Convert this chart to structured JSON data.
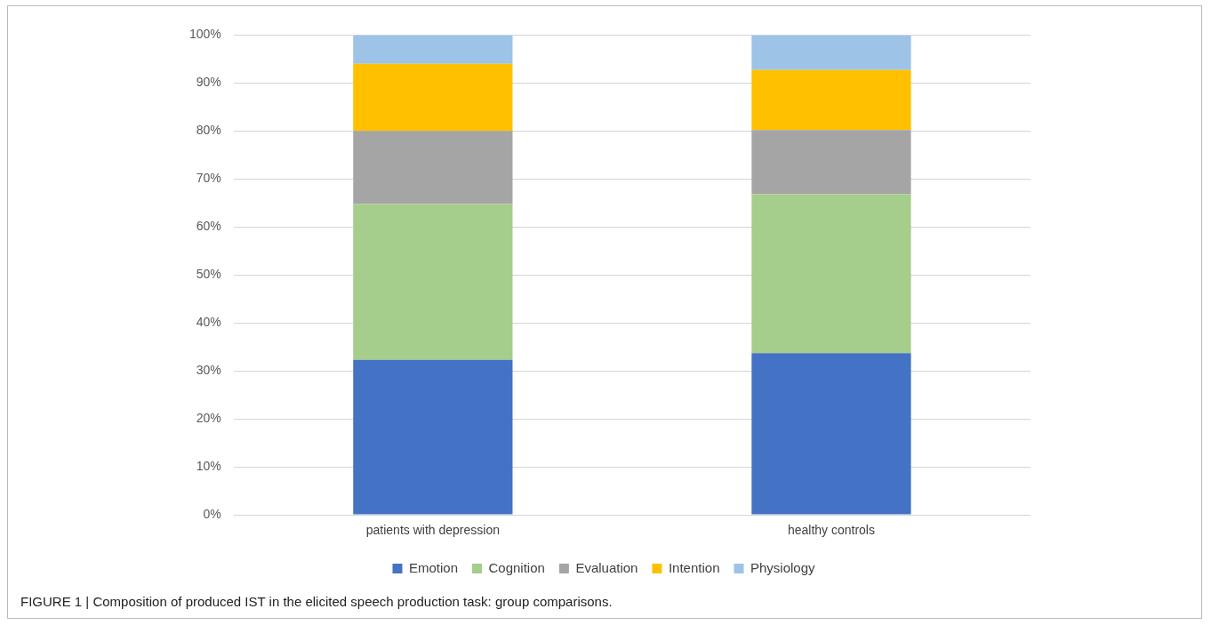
{
  "chart_data": {
    "type": "bar",
    "stacked": true,
    "categories": [
      "patients with depression",
      "healthy controls"
    ],
    "series": [
      {
        "name": "Emotion",
        "color": "#4472c4",
        "values": [
          32.3,
          33.7
        ]
      },
      {
        "name": "Cognition",
        "color": "#a5cd8c",
        "values": [
          32.5,
          33.1
        ]
      },
      {
        "name": "Evaluation",
        "color": "#a5a5a5",
        "values": [
          15.2,
          13.4
        ]
      },
      {
        "name": "Intention",
        "color": "#ffc000",
        "values": [
          14.0,
          12.5
        ]
      },
      {
        "name": "Physiology",
        "color": "#9dc3e6",
        "values": [
          6.0,
          7.3
        ]
      }
    ],
    "ylim": [
      0,
      100
    ],
    "yticks": [
      {
        "value": 0,
        "label": "0%"
      },
      {
        "value": 10,
        "label": "10%"
      },
      {
        "value": 20,
        "label": "20%"
      },
      {
        "value": 30,
        "label": "30%"
      },
      {
        "value": 40,
        "label": "40%"
      },
      {
        "value": 50,
        "label": "50%"
      },
      {
        "value": 60,
        "label": "60%"
      },
      {
        "value": 70,
        "label": "70%"
      },
      {
        "value": 80,
        "label": "80%"
      },
      {
        "value": 90,
        "label": "90%"
      },
      {
        "value": 100,
        "label": "100%"
      }
    ],
    "grid": "y",
    "legend": "bottom",
    "annotations": [
      "FIGURE 1 | Composition of produced IST in the elicited speech production task: group comparisons."
    ]
  }
}
